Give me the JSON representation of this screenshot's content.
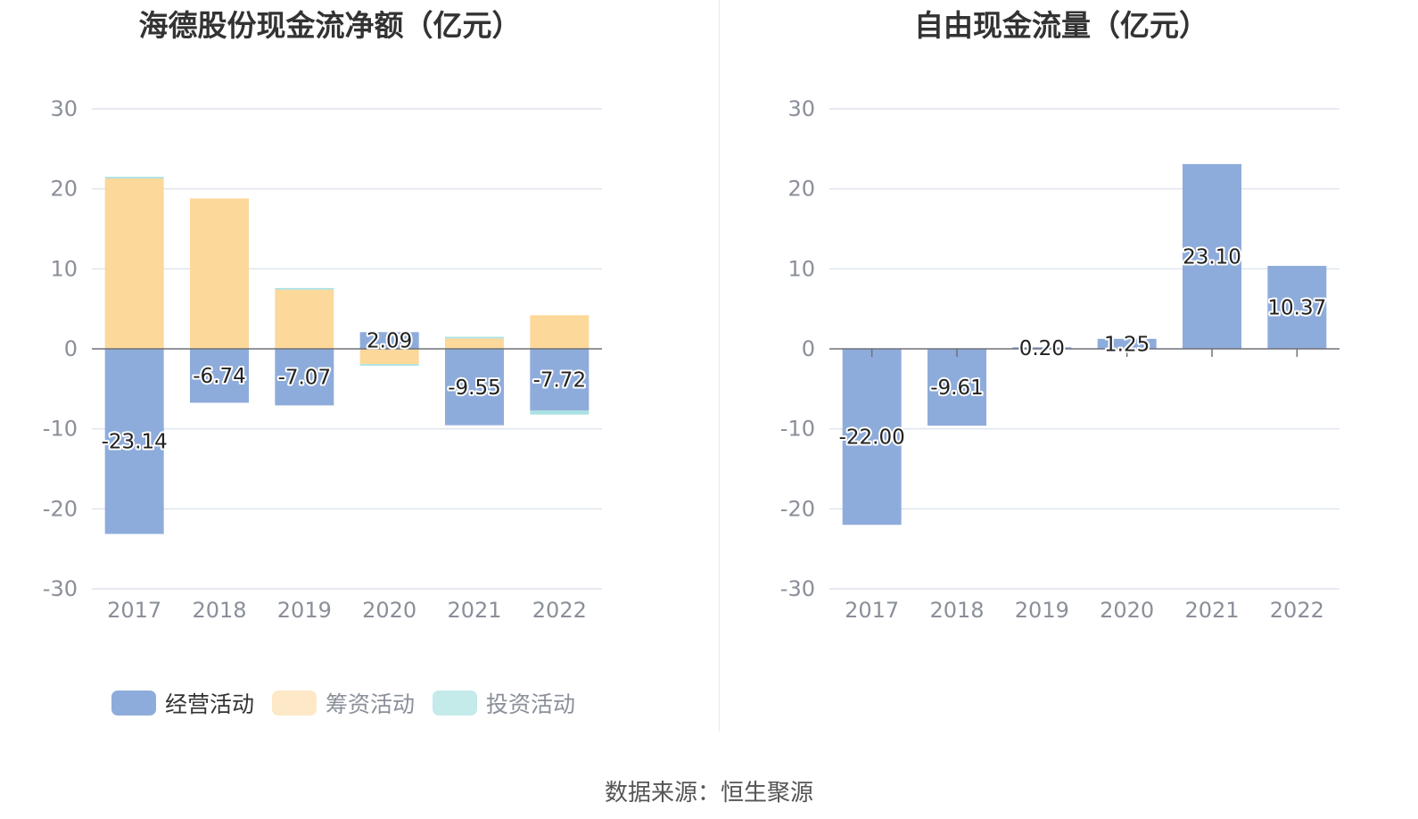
{
  "source_text": "数据来源：恒生聚源",
  "chart_data": [
    {
      "type": "bar",
      "title": "海德股份现金流净额（亿元）",
      "stacked": true,
      "categories": [
        "2017",
        "2018",
        "2019",
        "2020",
        "2021",
        "2022"
      ],
      "ylim": [
        -30,
        30
      ],
      "yticks": [
        "30",
        "20",
        "10",
        "0",
        "-10",
        "-20",
        "-30"
      ],
      "grid": true,
      "legend_position": "bottom",
      "series": [
        {
          "name": "经营活动",
          "color": "#8eacdb",
          "values": [
            -23.14,
            -6.74,
            -7.07,
            2.09,
            -9.55,
            -7.72
          ],
          "labels": [
            "-23.14",
            "-6.74",
            "-7.07",
            "2.09",
            "-9.55",
            "-7.72"
          ]
        },
        {
          "name": "筹资活动",
          "color": "#fdd89b",
          "values": [
            21.3,
            18.8,
            7.4,
            -1.9,
            1.3,
            4.2
          ]
        },
        {
          "name": "投资活动",
          "color": "#a9e2e2",
          "values": [
            0.2,
            0.0,
            0.2,
            -0.2,
            0.2,
            -0.5
          ]
        }
      ]
    },
    {
      "type": "bar",
      "title": "自由现金流量（亿元）",
      "categories": [
        "2017",
        "2018",
        "2019",
        "2020",
        "2021",
        "2022"
      ],
      "ylim": [
        -30,
        30
      ],
      "yticks": [
        "30",
        "20",
        "10",
        "0",
        "-10",
        "-20",
        "-30"
      ],
      "grid": true,
      "series": [
        {
          "name": "",
          "color": "#8eacdb",
          "values": [
            -22.0,
            -9.61,
            0.2,
            1.25,
            23.1,
            10.37
          ],
          "labels": [
            "-22.00",
            "-9.61",
            "0.20",
            "1.25",
            "23.10",
            "10.37"
          ]
        }
      ]
    }
  ],
  "legend": [
    {
      "label": "经营活动",
      "color": "#8eacdb",
      "active": true
    },
    {
      "label": "筹资活动",
      "color": "#fde8c7",
      "active": false
    },
    {
      "label": "投资活动",
      "color": "#c4eaea",
      "active": false
    }
  ]
}
